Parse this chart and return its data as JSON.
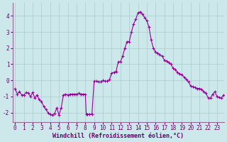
{
  "xlabel": "Windchill (Refroidissement éolien,°C)",
  "background_color": "#cce8ea",
  "line_color": "#990099",
  "marker_color": "#990099",
  "grid_color": "#b0d0d4",
  "x": [
    0.0,
    0.25,
    0.5,
    0.75,
    1.0,
    1.25,
    1.5,
    1.75,
    2.0,
    2.25,
    2.5,
    2.75,
    3.0,
    3.25,
    3.5,
    3.75,
    4.0,
    4.25,
    4.5,
    4.75,
    5.0,
    5.25,
    5.5,
    5.75,
    6.0,
    6.25,
    6.5,
    6.75,
    7.0,
    7.25,
    7.5,
    7.75,
    8.0,
    8.1,
    8.25,
    8.5,
    8.75,
    9.0,
    9.25,
    9.5,
    9.75,
    10.0,
    10.25,
    10.5,
    10.75,
    11.0,
    11.25,
    11.5,
    11.75,
    12.0,
    12.25,
    12.5,
    12.75,
    13.0,
    13.25,
    13.5,
    13.75,
    14.0,
    14.25,
    14.5,
    14.75,
    15.0,
    15.25,
    15.5,
    15.75,
    16.0,
    16.25,
    16.5,
    16.75,
    17.0,
    17.25,
    17.5,
    17.75,
    18.0,
    18.25,
    18.5,
    18.75,
    19.0,
    19.25,
    19.5,
    19.75,
    20.0,
    20.25,
    20.5,
    20.75,
    21.0,
    21.25,
    21.5,
    21.75,
    22.0,
    22.25,
    22.5,
    22.75,
    23.0,
    23.25,
    23.5,
    23.75
  ],
  "y": [
    -0.5,
    -0.85,
    -0.7,
    -0.9,
    -0.9,
    -0.75,
    -0.8,
    -1.0,
    -0.75,
    -1.1,
    -0.9,
    -1.2,
    -1.3,
    -1.6,
    -1.8,
    -2.0,
    -2.1,
    -2.15,
    -2.05,
    -1.7,
    -2.15,
    -1.7,
    -0.9,
    -0.85,
    -0.9,
    -0.85,
    -0.85,
    -0.85,
    -0.85,
    -0.8,
    -0.85,
    -0.85,
    -0.85,
    -2.1,
    -2.1,
    -2.1,
    -2.1,
    -0.05,
    -0.05,
    -0.1,
    -0.1,
    0.0,
    -0.05,
    -0.05,
    0.05,
    0.45,
    0.5,
    0.55,
    1.15,
    1.15,
    1.5,
    2.0,
    2.4,
    2.4,
    3.0,
    3.5,
    3.8,
    4.2,
    4.25,
    4.1,
    3.9,
    3.7,
    3.3,
    2.5,
    2.0,
    1.75,
    1.7,
    1.6,
    1.5,
    1.25,
    1.2,
    1.1,
    1.0,
    0.75,
    0.65,
    0.5,
    0.4,
    0.35,
    0.2,
    0.05,
    -0.1,
    -0.35,
    -0.4,
    -0.45,
    -0.5,
    -0.5,
    -0.55,
    -0.7,
    -0.8,
    -1.1,
    -1.1,
    -0.85,
    -0.7,
    -1.0,
    -1.05,
    -1.1,
    -0.9
  ],
  "ylim": [
    -2.6,
    4.8
  ],
  "xlim": [
    -0.3,
    23.8
  ],
  "yticks": [
    -2,
    -1,
    0,
    1,
    2,
    3,
    4
  ],
  "xticks": [
    0,
    1,
    2,
    3,
    4,
    5,
    6,
    7,
    8,
    9,
    10,
    11,
    12,
    13,
    14,
    15,
    16,
    17,
    18,
    19,
    20,
    21,
    22,
    23
  ],
  "tick_fontsize": 5.5,
  "xlabel_fontsize": 6.0
}
